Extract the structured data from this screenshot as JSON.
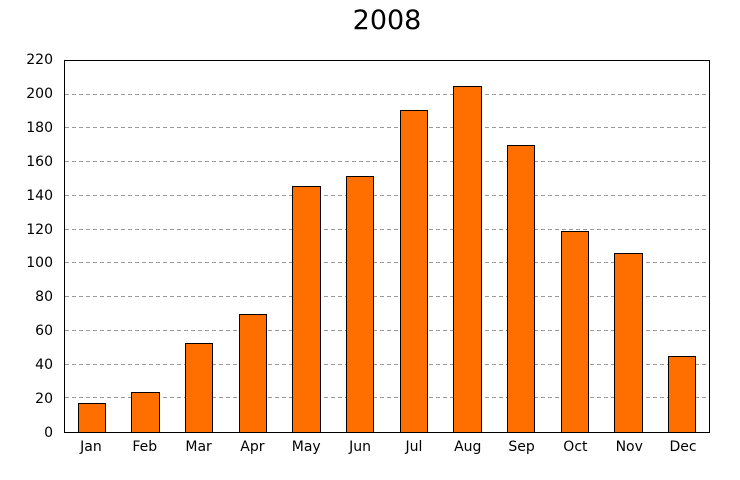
{
  "chart_data": {
    "type": "bar",
    "title": "2008",
    "categories": [
      "Jan",
      "Feb",
      "Mar",
      "Apr",
      "May",
      "Jun",
      "Jul",
      "Aug",
      "Sep",
      "Oct",
      "Nov",
      "Dec"
    ],
    "values": [
      17,
      24,
      53,
      70,
      146,
      152,
      191,
      205,
      170,
      119,
      106,
      45
    ],
    "xlabel": "",
    "ylabel": "",
    "ylim": [
      0,
      220
    ],
    "yticks": [
      0,
      20,
      40,
      60,
      80,
      100,
      120,
      140,
      160,
      180,
      200,
      220
    ],
    "grid": "horizontal-dashed",
    "legend": "none",
    "bar_color": "#ff6f00",
    "bar_border_color": "#000000",
    "grid_color": "#9a9a9a",
    "axis_color": "#000000",
    "background_color": "#ffffff"
  }
}
